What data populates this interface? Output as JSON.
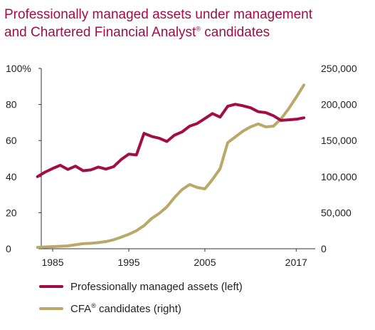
{
  "title": {
    "line1": "Professionally managed assets under management",
    "line2_before": "and Chartered Financial Analyst",
    "line2_sup": "®",
    "line2_after": " candidates"
  },
  "colors": {
    "title": "#A30D45",
    "assets": "#A30D45",
    "cfa": "#B8A86A",
    "axis": "#333333",
    "text": "#222222"
  },
  "chart_data": {
    "type": "line",
    "title": "Professionally managed assets under management and Chartered Financial Analyst® candidates",
    "xlabel": "",
    "xlim": [
      1983.5,
      2019.5
    ],
    "x_ticks": [
      1985,
      1995,
      2005,
      2017
    ],
    "x_tick_labels": [
      "1985",
      "1995",
      "2005",
      "2017"
    ],
    "left_axis": {
      "ylim": [
        0,
        100
      ],
      "ticks": [
        0,
        20,
        40,
        60,
        80,
        100
      ],
      "tick_labels": [
        "0",
        "20",
        "40",
        "60",
        "80",
        "100%"
      ]
    },
    "right_axis": {
      "ylim": [
        0,
        250000
      ],
      "ticks": [
        0,
        50000,
        100000,
        150000,
        200000,
        250000
      ],
      "tick_labels": [
        "0",
        "50,000",
        "100,000",
        "150,000",
        "200,000",
        "250,000"
      ]
    },
    "grid": false,
    "legend_position": "bottom",
    "series": [
      {
        "name": "Professionally managed assets (left)",
        "axis": "left",
        "color": "#A30D45",
        "x": [
          1983,
          1984,
          1985,
          1986,
          1987,
          1988,
          1989,
          1990,
          1991,
          1992,
          1993,
          1994,
          1995,
          1996,
          1997,
          1998,
          1999,
          2000,
          2001,
          2002,
          2003,
          2004,
          2005,
          2006,
          2007,
          2008,
          2009,
          2010,
          2011,
          2012,
          2013,
          2014,
          2015,
          2016,
          2017,
          2018
        ],
        "values": [
          40,
          42.5,
          44.5,
          46.3,
          44,
          45.8,
          43.3,
          43.7,
          45.3,
          44.2,
          45.5,
          49.5,
          52.5,
          52,
          64,
          62.3,
          61.3,
          59.5,
          63,
          64.8,
          68,
          69.5,
          72.2,
          75,
          73,
          79,
          80.1,
          79.3,
          78.2,
          76,
          75.5,
          73.8,
          71.2,
          71.5,
          71.8,
          72.6
        ]
      },
      {
        "name": "CFA® candidates (right)",
        "name_before": "CFA",
        "name_sup": "®",
        "name_after": " candidates (right)",
        "axis": "right",
        "color": "#B8A86A",
        "x": [
          1983,
          1984,
          1985,
          1986,
          1987,
          1988,
          1989,
          1990,
          1991,
          1992,
          1993,
          1994,
          1995,
          1996,
          1997,
          1998,
          1999,
          2000,
          2001,
          2002,
          2003,
          2004,
          2005,
          2006,
          2007,
          2008,
          2009,
          2010,
          2011,
          2012,
          2013,
          2014,
          2015,
          2016,
          2017,
          2018
        ],
        "values": [
          2000,
          2500,
          3000,
          3500,
          4000,
          5500,
          7000,
          7500,
          8500,
          10000,
          12500,
          16000,
          20000,
          25000,
          32000,
          42000,
          49000,
          58000,
          71000,
          82000,
          89000,
          85000,
          83000,
          96000,
          111000,
          147000,
          155000,
          163000,
          169000,
          173000,
          169000,
          170000,
          180000,
          194000,
          210000,
          227000
        ]
      }
    ]
  }
}
